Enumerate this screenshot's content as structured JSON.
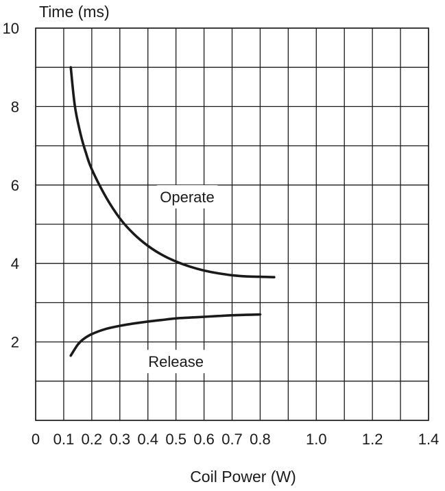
{
  "chart_data": {
    "type": "line",
    "title": "",
    "xlabel": "Coil Power (W)",
    "ylabel": "Time (ms)",
    "xlim": [
      0,
      1.4
    ],
    "ylim": [
      0,
      10
    ],
    "grid": true,
    "x_ticks": [
      0,
      0.1,
      0.2,
      0.3,
      0.4,
      0.5,
      0.6,
      0.7,
      0.8,
      0.9,
      1.0,
      1.1,
      1.2,
      1.3,
      1.4
    ],
    "x_tick_labels": [
      "0",
      "0.1",
      "0.2",
      "0.3",
      "0.4",
      "0.5",
      "0.6",
      "0.7",
      "0.8",
      "1.0",
      "1.2",
      "1.4"
    ],
    "y_grid_ticks": [
      0,
      1,
      2,
      3,
      4,
      5,
      6,
      7,
      8,
      9,
      10
    ],
    "y_tick_labels": [
      "2",
      "4",
      "6",
      "8",
      "10"
    ],
    "series": [
      {
        "label": "Operate",
        "x": [
          0.125,
          0.14,
          0.16,
          0.18,
          0.2,
          0.25,
          0.3,
          0.35,
          0.4,
          0.45,
          0.5,
          0.55,
          0.6,
          0.65,
          0.7,
          0.75,
          0.8,
          0.85
        ],
        "y": [
          9.0,
          8.0,
          7.3,
          6.8,
          6.4,
          5.7,
          5.15,
          4.75,
          4.45,
          4.22,
          4.05,
          3.92,
          3.82,
          3.75,
          3.7,
          3.67,
          3.66,
          3.65
        ]
      },
      {
        "label": "Release",
        "x": [
          0.125,
          0.15,
          0.17,
          0.2,
          0.25,
          0.3,
          0.35,
          0.4,
          0.45,
          0.5,
          0.55,
          0.6,
          0.65,
          0.7,
          0.75,
          0.8
        ],
        "y": [
          1.65,
          1.93,
          2.07,
          2.2,
          2.33,
          2.41,
          2.47,
          2.52,
          2.56,
          2.6,
          2.62,
          2.64,
          2.66,
          2.68,
          2.69,
          2.7
        ]
      }
    ],
    "annotations": [
      {
        "text": "Operate",
        "x": 0.54,
        "y": 5.7
      },
      {
        "text": "Release",
        "x": 0.5,
        "y": 1.5
      }
    ]
  }
}
